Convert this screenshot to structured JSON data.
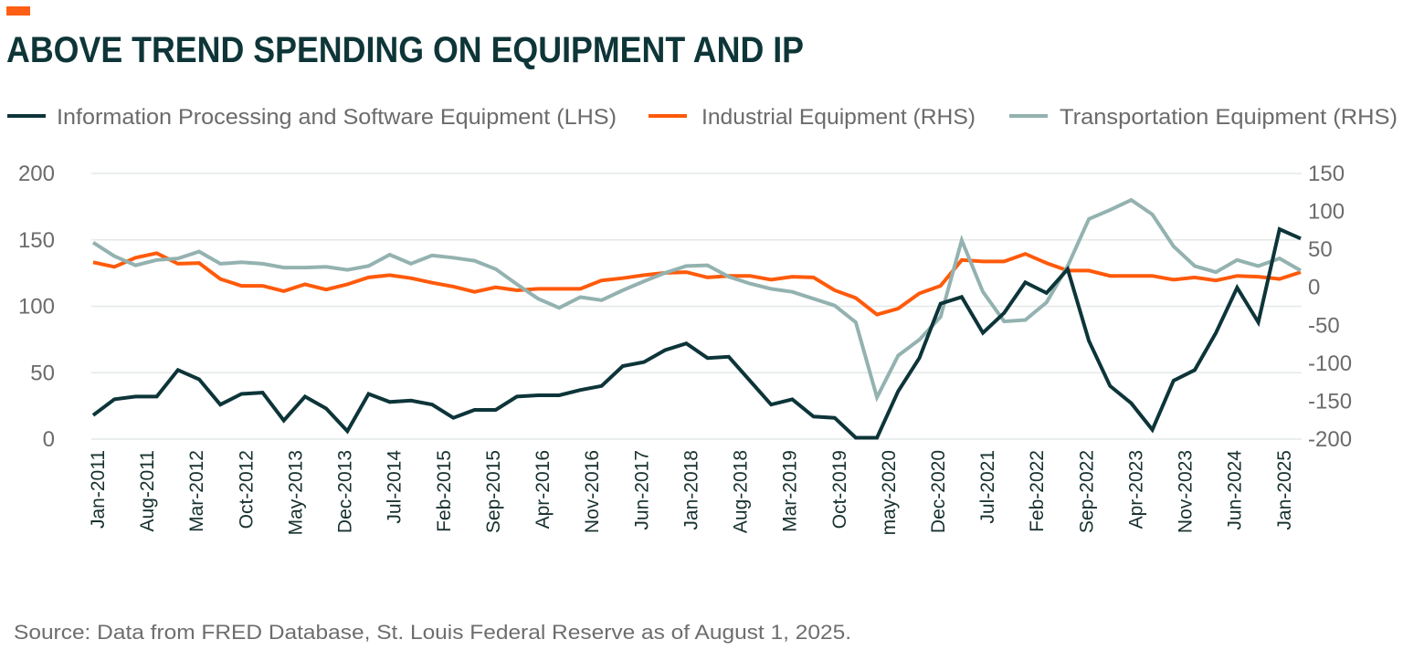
{
  "header": {
    "title": "ABOVE TREND SPENDING ON EQUIPMENT AND IP",
    "accent_color": "#ff5f15"
  },
  "footer": {
    "source": "Source: Data from FRED Database, St. Louis Federal Reserve as of August 1, 2025."
  },
  "chart_data": {
    "type": "line",
    "title": "ABOVE TREND SPENDING ON EQUIPMENT AND IP",
    "legend_placement": "top",
    "grid": true,
    "left_axis": {
      "ylim": [
        0,
        200
      ],
      "ticks": [
        "200",
        "150",
        "100",
        "50",
        "0"
      ],
      "tick_values": [
        200,
        150,
        100,
        50,
        0
      ]
    },
    "right_axis": {
      "ylim": [
        -200,
        150
      ],
      "ticks": [
        "150",
        "100",
        "50",
        "0",
        "-50",
        "-100",
        "-150",
        "-200"
      ],
      "tick_values": [
        150,
        100,
        50,
        0,
        -50,
        -100,
        -150,
        -200
      ]
    },
    "x_tick_labels": [
      "Jan-2011",
      "Aug-2011",
      "Mar-2012",
      "Oct-2012",
      "May-2013",
      "Dec-2013",
      "Jul-2014",
      "Feb-2015",
      "Sep-2015",
      "Apr-2016",
      "Nov-2016",
      "Jun-2017",
      "Jan-2018",
      "Aug-2018",
      "Mar-2019",
      "Oct-2019",
      "may-2020",
      "Dec-2020",
      "Jul-2021",
      "Feb-2022",
      "Sep-2022",
      "Apr-2023",
      "Nov-2023",
      "Jun-2024",
      "Jan-2025"
    ],
    "x_tick_months": [
      "2011-01",
      "2011-08",
      "2012-03",
      "2012-10",
      "2013-05",
      "2013-12",
      "2014-07",
      "2015-02",
      "2015-09",
      "2016-04",
      "2016-11",
      "2017-06",
      "2018-01",
      "2018-08",
      "2019-03",
      "2019-10",
      "2020-05",
      "2020-12",
      "2021-07",
      "2022-02",
      "2022-09",
      "2023-04",
      "2023-11",
      "2024-06",
      "2025-01"
    ],
    "x": [
      "2011-01",
      "2011-04",
      "2011-07",
      "2011-10",
      "2012-01",
      "2012-04",
      "2012-07",
      "2012-10",
      "2013-01",
      "2013-04",
      "2013-07",
      "2013-10",
      "2014-01",
      "2014-04",
      "2014-07",
      "2014-10",
      "2015-01",
      "2015-04",
      "2015-07",
      "2015-10",
      "2016-01",
      "2016-04",
      "2016-07",
      "2016-10",
      "2017-01",
      "2017-04",
      "2017-07",
      "2017-10",
      "2018-01",
      "2018-04",
      "2018-07",
      "2018-10",
      "2019-01",
      "2019-04",
      "2019-07",
      "2019-10",
      "2020-01",
      "2020-04",
      "2020-07",
      "2020-10",
      "2021-01",
      "2021-04",
      "2021-07",
      "2021-10",
      "2022-01",
      "2022-04",
      "2022-07",
      "2022-10",
      "2023-01",
      "2023-04",
      "2023-07",
      "2023-10",
      "2024-01",
      "2024-04",
      "2024-07",
      "2024-10",
      "2025-01",
      "2025-04"
    ],
    "series": [
      {
        "name": "Information Processing and Software Equipment (LHS)",
        "axis": "left",
        "color": "#0d3539",
        "values": [
          18,
          30,
          32,
          32,
          52,
          45,
          26,
          34,
          35,
          14,
          32,
          23,
          6,
          34,
          28,
          29,
          26,
          16,
          22,
          22,
          32,
          33,
          33,
          37,
          40,
          55,
          58,
          67,
          72,
          61,
          62,
          44,
          26,
          30,
          17,
          16,
          1,
          1,
          36,
          61,
          102,
          107,
          80,
          95,
          118,
          110,
          128,
          74,
          40,
          27,
          7,
          44,
          52,
          80,
          114,
          88,
          158,
          151
        ]
      },
      {
        "name": "Industrial Equipment (RHS)",
        "axis": "right",
        "color": "#ff5a0a",
        "values": [
          33,
          27,
          39,
          45,
          31,
          32,
          11,
          2,
          2,
          -5,
          4,
          -3,
          4,
          13,
          16,
          12,
          6,
          1,
          -6,
          0,
          -4,
          -2,
          -2,
          -2,
          9,
          12,
          16,
          19,
          20,
          13,
          15,
          15,
          10,
          14,
          13,
          -4,
          -14,
          -36,
          -28,
          -8,
          2,
          36,
          34,
          34,
          44,
          32,
          22,
          22,
          15,
          15,
          15,
          10,
          13,
          9,
          15,
          14,
          11,
          20
        ]
      },
      {
        "name": "Transportation Equipment (RHS)",
        "axis": "right",
        "color": "#93b2b0",
        "values": [
          59,
          41,
          29,
          36,
          38,
          47,
          31,
          33,
          31,
          26,
          26,
          27,
          23,
          28,
          43,
          31,
          42,
          39,
          35,
          24,
          4,
          -15,
          -27,
          -13,
          -17,
          -4,
          8,
          19,
          28,
          29,
          14,
          5,
          -2,
          -6,
          -15,
          -24,
          -46,
          -145,
          -90,
          -69,
          -39,
          62,
          -6,
          -45,
          -43,
          -20,
          28,
          90,
          102,
          115,
          96,
          54,
          28,
          20,
          36,
          28,
          38,
          22
        ]
      }
    ]
  }
}
